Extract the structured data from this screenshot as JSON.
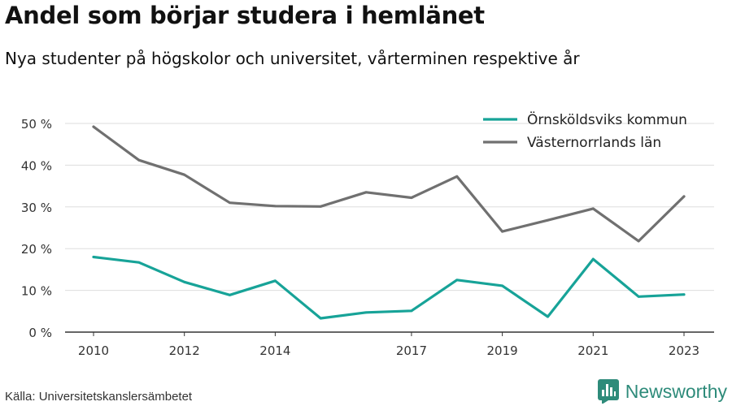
{
  "title": "Andel som börjar studera i hemlänet",
  "subtitle": "Nya studenter på högskolor och universitet, vårterminen respektive år",
  "source": "Källa: Universitetskanslersämbetet",
  "brand": {
    "name": "Newsworthy",
    "icon": "newsworthy-logo-icon",
    "color": "#2e8b7a"
  },
  "chart_data": {
    "type": "line",
    "x": [
      2010,
      2011,
      2012,
      2013,
      2014,
      2015,
      2016,
      2017,
      2018,
      2019,
      2020,
      2021,
      2022,
      2023
    ],
    "x_ticks": [
      "2010",
      "2012",
      "2014",
      "2017",
      "2019",
      "2021",
      "2023"
    ],
    "y_ticks": [
      "0 %",
      "10 %",
      "20 %",
      "30 %",
      "40 %",
      "50 %"
    ],
    "ylim": [
      0,
      50
    ],
    "grid": true,
    "legend_position": "top-right",
    "series": [
      {
        "name": "Örnsköldsviks kommun",
        "color": "#17a398",
        "values": [
          18,
          16.7,
          12,
          8.9,
          12.3,
          3.3,
          4.7,
          5.1,
          12.5,
          11.1,
          3.7,
          17.5,
          8.5,
          9
        ]
      },
      {
        "name": "Västernorrlands län",
        "color": "#707070",
        "values": [
          49.2,
          41.2,
          37.7,
          31,
          30.2,
          30.1,
          33.5,
          32.2,
          37.3,
          24.1,
          26.8,
          29.6,
          21.8,
          32.5
        ]
      }
    ]
  }
}
